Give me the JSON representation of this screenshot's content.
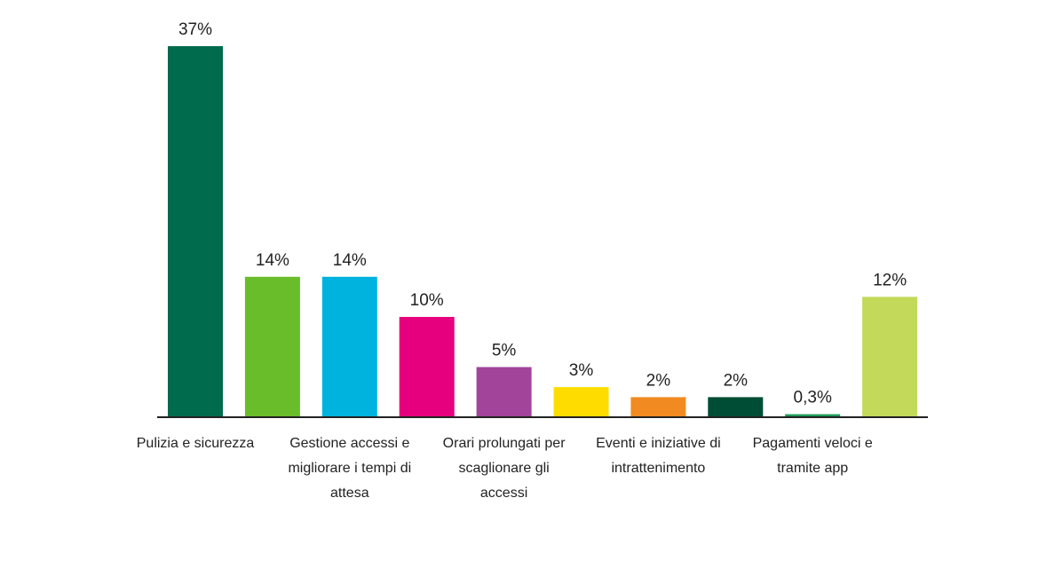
{
  "chart_data": {
    "type": "bar",
    "title": "",
    "xlabel": "",
    "ylabel": "",
    "ylim": [
      0,
      37
    ],
    "categories": [
      "Pulizia e sicurezza",
      "",
      "Gestione accessi e migliorare i tempi di attesa",
      "",
      "Orari prolungati per scaglionare gli accessi",
      "",
      "Eventi e iniziative di intrattenimento",
      "",
      "Pagamenti veloci e tramite app",
      ""
    ],
    "values": [
      37,
      14,
      14,
      10,
      5,
      3,
      2,
      2,
      0.3,
      12
    ],
    "value_labels": [
      "37%",
      "14%",
      "14%",
      "10%",
      "5%",
      "3%",
      "2%",
      "2%",
      "0,3%",
      "12%"
    ],
    "colors": [
      "#006b4d",
      "#6abd2a",
      "#00b3df",
      "#e6007e",
      "#a2449a",
      "#ffdc00",
      "#f18a21",
      "#004d35",
      "#1e9b5a",
      "#c2d95a"
    ],
    "grid": false,
    "legend": "none"
  }
}
